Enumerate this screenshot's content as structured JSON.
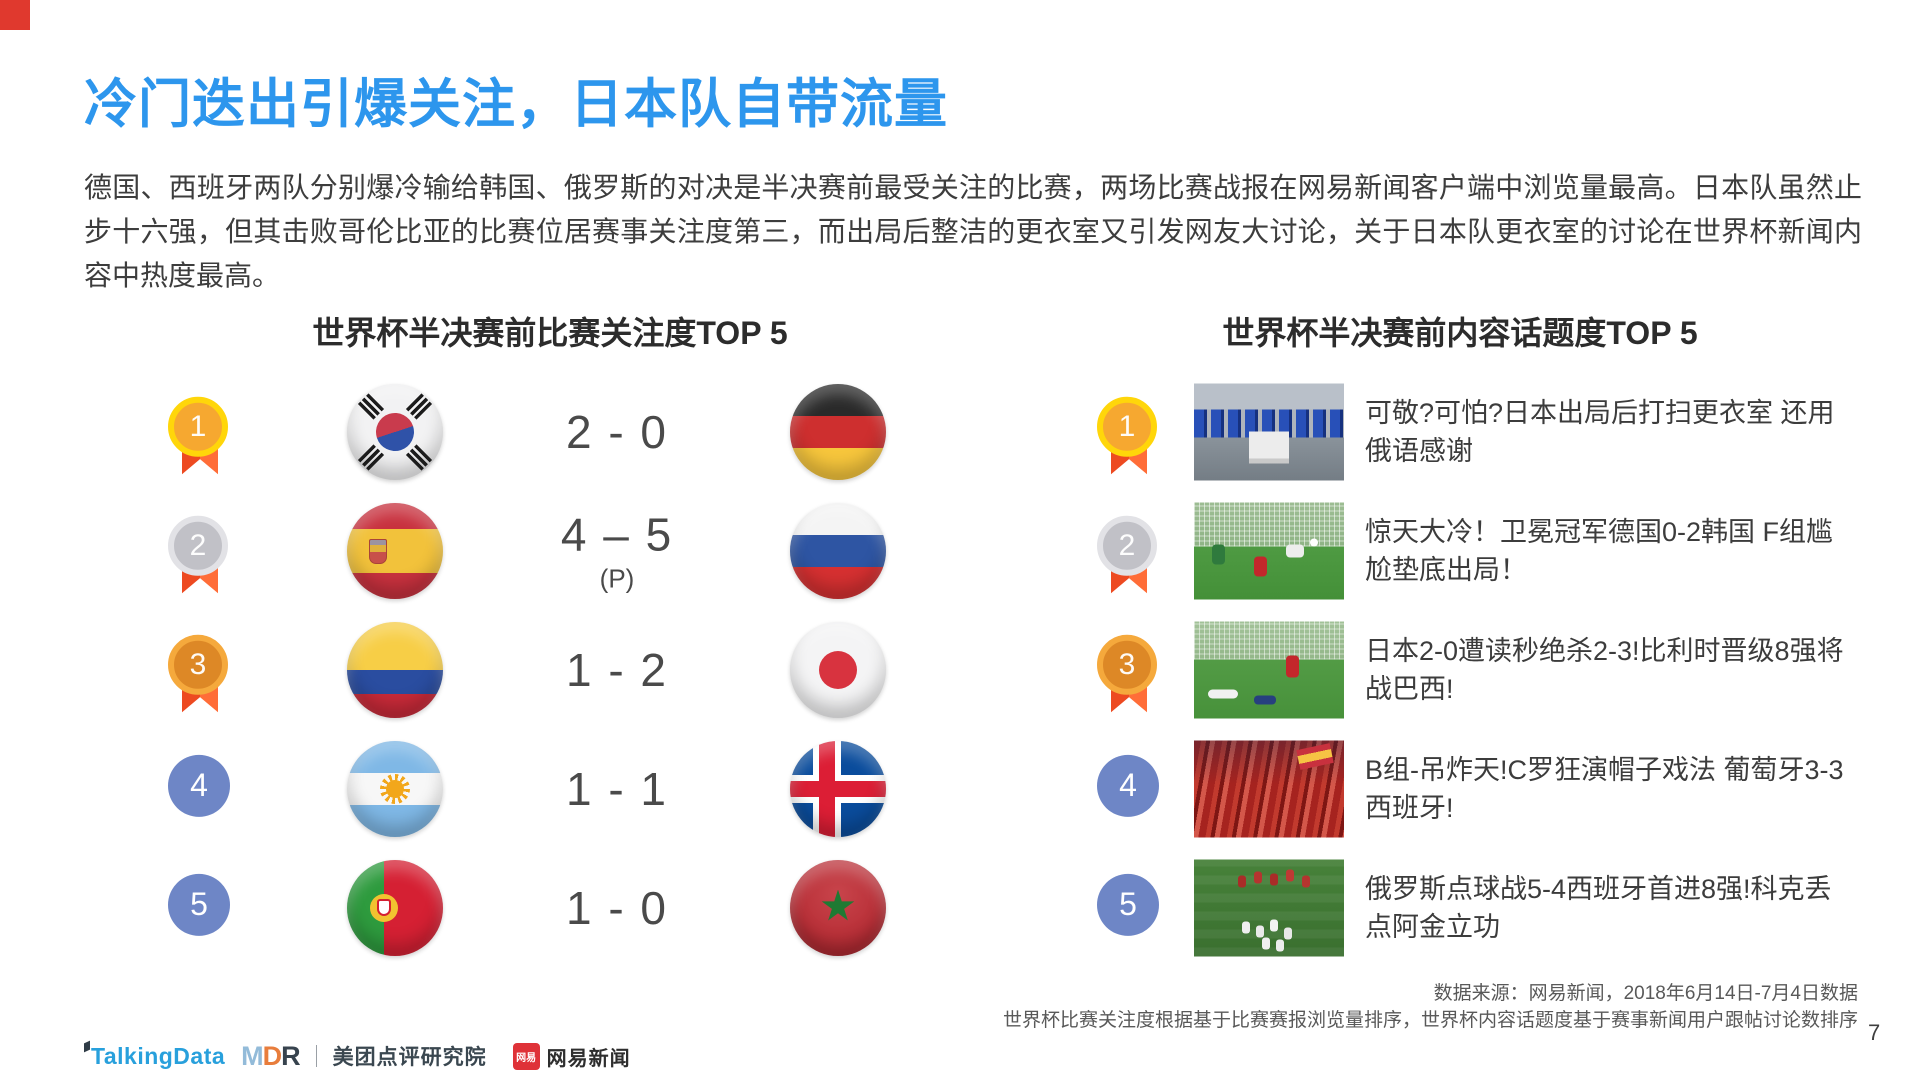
{
  "slide": {
    "title": "冷门迭出引爆关注，日本队自带流量",
    "title_color": "#2D96ED",
    "intro": "德国、西班牙两队分别爆冷输给韩国、俄罗斯的对决是半决赛前最受关注的比赛，两场比赛战报在网易新闻客户端中浏览量最高。日本队虽然止步十六强，但其击败哥伦比亚的比赛位居赛事关注度第三，而出局后整洁的更衣室又引发网友大讨论，关于日本队更衣室的讨论在世界杯新闻内容中热度最高。",
    "page_number": "7",
    "corner_accent_color": "#E0392E"
  },
  "match_panel": {
    "title": "世界杯半决赛前比赛关注度TOP 5",
    "rows": [
      {
        "rank": "1",
        "medal": "gold",
        "home_team": "south-korea",
        "score": "2 - 0",
        "score_note": "",
        "away_team": "germany"
      },
      {
        "rank": "2",
        "medal": "silver",
        "home_team": "spain",
        "score": "4 – 5",
        "score_note": "(P)",
        "away_team": "russia"
      },
      {
        "rank": "3",
        "medal": "bronze",
        "home_team": "colombia",
        "score": "1 - 2",
        "score_note": "",
        "away_team": "japan"
      },
      {
        "rank": "4",
        "medal": "none",
        "home_team": "argentina",
        "score": "1 - 1",
        "score_note": "",
        "away_team": "iceland"
      },
      {
        "rank": "5",
        "medal": "none",
        "home_team": "portugal",
        "score": "1 - 0",
        "score_note": "",
        "away_team": "morocco"
      }
    ]
  },
  "topic_panel": {
    "title": "世界杯半决赛前内容话题度TOP 5",
    "rows": [
      {
        "rank": "1",
        "medal": "gold",
        "thumbnail": "japan-clean-locker-room",
        "headline": "可敬?可怕?日本出局后打扫更衣室 还用俄语感谢"
      },
      {
        "rank": "2",
        "medal": "silver",
        "thumbnail": "germany-korea-goal",
        "headline": "惊天大冷！卫冕冠军德国0-2韩国 F组尴尬垫底出局！"
      },
      {
        "rank": "3",
        "medal": "bronze",
        "thumbnail": "japan-belgium-goal",
        "headline": "日本2-0遭读秒绝杀2-3!比利时晋级8强将战巴西!"
      },
      {
        "rank": "4",
        "medal": "none",
        "thumbnail": "portugal-spain-fans",
        "headline": "B组-吊炸天!C罗狂演帽子戏法 葡萄牙3-3西班牙!"
      },
      {
        "rank": "5",
        "medal": "none",
        "thumbnail": "russia-spain-penalty",
        "headline": "俄罗斯点球战5-4西班牙首进8强!科克丢点阿金立功"
      }
    ]
  },
  "colors": {
    "medal_gold_ring": "#FFD60A",
    "medal_gold_fill": "#F6A830",
    "medal_silver_ring": "#E2E2E6",
    "medal_silver_fill": "#C1C1C7",
    "medal_bronze_ring": "#F5A93C",
    "medal_bronze_fill": "#DD8826",
    "ribbon_red": "#EE4D22",
    "rank_plain_blue": "#6E86C6"
  },
  "footer": {
    "source_line1": "数据来源：网易新闻，2018年6月14日-7月4日数据",
    "source_line2": "世界杯比赛关注度根据基于比赛赛报浏览量排序，世界杯内容话题度基于赛事新闻用户跟帖讨论数排序",
    "logos": {
      "talkingdata": "TalkingData",
      "mdr_m": "M",
      "mdr_d": "D",
      "mdr_r": "R",
      "mdr_name": "美团点评研究院",
      "netease_badge": "网易",
      "netease_name": "网易新闻"
    }
  }
}
